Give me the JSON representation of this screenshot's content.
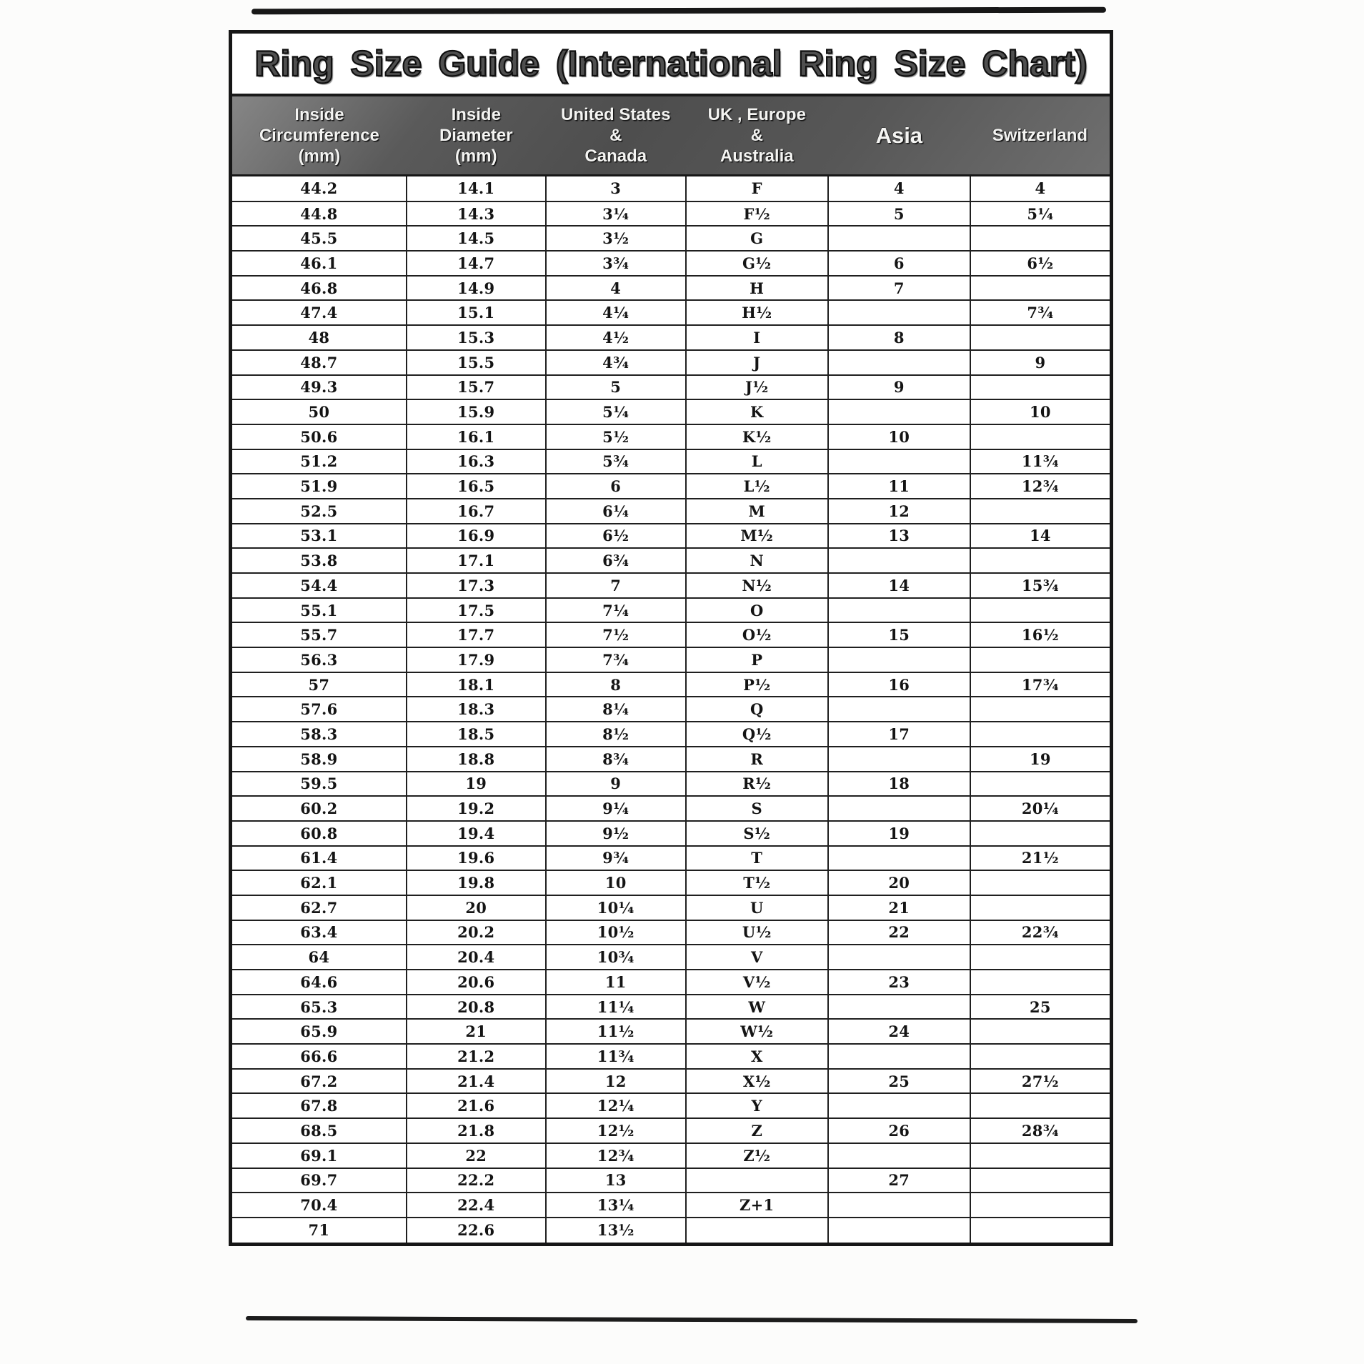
{
  "title": "Ring Size Guide (International Ring Size Chart)",
  "table": {
    "columns": [
      {
        "key": "inside-circumference",
        "lines": [
          "Inside",
          "Circumference",
          "(mm)"
        ],
        "large": false
      },
      {
        "key": "inside-diameter",
        "lines": [
          "Inside",
          "Diameter",
          "(mm)"
        ],
        "large": false
      },
      {
        "key": "us-canada",
        "lines": [
          "United States",
          "&",
          "Canada"
        ],
        "large": false
      },
      {
        "key": "uk-europe-australia",
        "lines": [
          "UK , Europe",
          "&",
          "Australia"
        ],
        "large": false
      },
      {
        "key": "asia",
        "lines": [
          "Asia"
        ],
        "large": true
      },
      {
        "key": "switzerland",
        "lines": [
          "Switzerland"
        ],
        "large": false
      }
    ],
    "col_widths_pct": [
      19.85,
      15.88,
      15.96,
      16.21,
      16.21,
      15.89
    ],
    "rows": [
      [
        "44.2",
        "14.1",
        "3",
        "F",
        "4",
        "4"
      ],
      [
        "44.8",
        "14.3",
        "3¼",
        "F½",
        "5",
        "5¼"
      ],
      [
        "45.5",
        "14.5",
        "3½",
        "G",
        "",
        ""
      ],
      [
        "46.1",
        "14.7",
        "3¾",
        "G½",
        "6",
        "6½"
      ],
      [
        "46.8",
        "14.9",
        "4",
        "H",
        "7",
        ""
      ],
      [
        "47.4",
        "15.1",
        "4¼",
        "H½",
        "",
        "7¾"
      ],
      [
        "48",
        "15.3",
        "4½",
        "I",
        "8",
        ""
      ],
      [
        "48.7",
        "15.5",
        "4¾",
        "J",
        "",
        "9"
      ],
      [
        "49.3",
        "15.7",
        "5",
        "J½",
        "9",
        ""
      ],
      [
        "50",
        "15.9",
        "5¼",
        "K",
        "",
        "10"
      ],
      [
        "50.6",
        "16.1",
        "5½",
        "K½",
        "10",
        ""
      ],
      [
        "51.2",
        "16.3",
        "5¾",
        "L",
        "",
        "11¾"
      ],
      [
        "51.9",
        "16.5",
        "6",
        "L½",
        "11",
        "12¾"
      ],
      [
        "52.5",
        "16.7",
        "6¼",
        "M",
        "12",
        ""
      ],
      [
        "53.1",
        "16.9",
        "6½",
        "M½",
        "13",
        "14"
      ],
      [
        "53.8",
        "17.1",
        "6¾",
        "N",
        "",
        ""
      ],
      [
        "54.4",
        "17.3",
        "7",
        "N½",
        "14",
        "15¾"
      ],
      [
        "55.1",
        "17.5",
        "7¼",
        "O",
        "",
        ""
      ],
      [
        "55.7",
        "17.7",
        "7½",
        "O½",
        "15",
        "16½"
      ],
      [
        "56.3",
        "17.9",
        "7¾",
        "P",
        "",
        ""
      ],
      [
        "57",
        "18.1",
        "8",
        "P½",
        "16",
        "17¾"
      ],
      [
        "57.6",
        "18.3",
        "8¼",
        "Q",
        "",
        ""
      ],
      [
        "58.3",
        "18.5",
        "8½",
        "Q½",
        "17",
        ""
      ],
      [
        "58.9",
        "18.8",
        "8¾",
        "R",
        "",
        "19"
      ],
      [
        "59.5",
        "19",
        "9",
        "R½",
        "18",
        ""
      ],
      [
        "60.2",
        "19.2",
        "9¼",
        "S",
        "",
        "20¼"
      ],
      [
        "60.8",
        "19.4",
        "9½",
        "S½",
        "19",
        ""
      ],
      [
        "61.4",
        "19.6",
        "9¾",
        "T",
        "",
        "21½"
      ],
      [
        "62.1",
        "19.8",
        "10",
        "T½",
        "20",
        ""
      ],
      [
        "62.7",
        "20",
        "10¼",
        "U",
        "21",
        ""
      ],
      [
        "63.4",
        "20.2",
        "10½",
        "U½",
        "22",
        "22¾"
      ],
      [
        "64",
        "20.4",
        "10¾",
        "V",
        "",
        ""
      ],
      [
        "64.6",
        "20.6",
        "11",
        "V½",
        "23",
        ""
      ],
      [
        "65.3",
        "20.8",
        "11¼",
        "W",
        "",
        "25"
      ],
      [
        "65.9",
        "21",
        "11½",
        "W½",
        "24",
        ""
      ],
      [
        "66.6",
        "21.2",
        "11¾",
        "X",
        "",
        ""
      ],
      [
        "67.2",
        "21.4",
        "12",
        "X½",
        "25",
        "27½"
      ],
      [
        "67.8",
        "21.6",
        "12¼",
        "Y",
        "",
        ""
      ],
      [
        "68.5",
        "21.8",
        "12½",
        "Z",
        "26",
        "28¾"
      ],
      [
        "69.1",
        "22",
        "12¾",
        "Z½",
        "",
        ""
      ],
      [
        "69.7",
        "22.2",
        "13",
        "",
        "27",
        ""
      ],
      [
        "70.4",
        "22.4",
        "13¼",
        "Z+1",
        "",
        ""
      ],
      [
        "71",
        "22.6",
        "13½",
        "",
        "",
        ""
      ]
    ]
  },
  "colors": {
    "ink": "#161616",
    "paper": "#fcfcfb",
    "header_bg": "#565656",
    "header_text": "#f4f4f2"
  }
}
